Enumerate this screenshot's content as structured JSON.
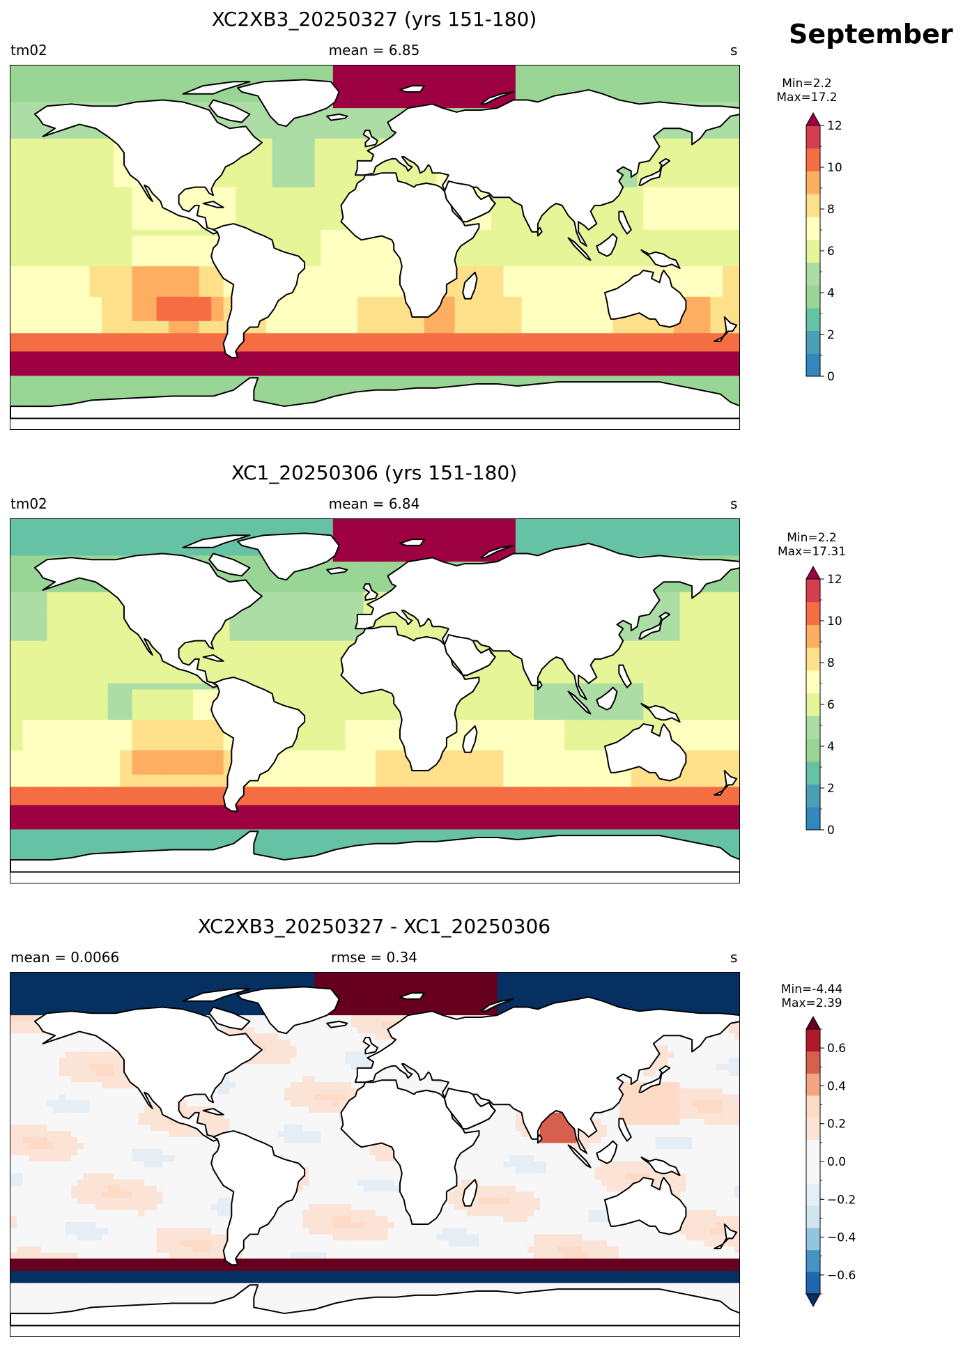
{
  "page_title": "September",
  "chart_data": [
    {
      "type": "heatmap",
      "title": "XC2XB3_20250327 (yrs 151-180)",
      "left_label": "tm02",
      "center_label": "mean = 6.85",
      "right_label": "s",
      "colorbar": {
        "note": "Min=2.2\nMax=17.2",
        "min": 0,
        "max": 12,
        "extend": "max",
        "ticks": [
          "0",
          "2",
          "4",
          "6",
          "8",
          "10",
          "12"
        ],
        "colors": [
          "#5e4fa2",
          "#3288bd",
          "#4a9fb4",
          "#66c2a5",
          "#99d594",
          "#abdda4",
          "#e6f598",
          "#ffffbf",
          "#fee08b",
          "#fdae61",
          "#f46d43",
          "#d53e4f",
          "#9e0142"
        ]
      },
      "mean": 6.85,
      "data_min": 2.2,
      "data_max": 17.2
    },
    {
      "type": "heatmap",
      "title": "XC1_20250306 (yrs 151-180)",
      "left_label": "tm02",
      "center_label": "mean = 6.84",
      "right_label": "s",
      "colorbar": {
        "note": "Min=2.2\nMax=17.31",
        "min": 0,
        "max": 12,
        "extend": "max",
        "ticks": [
          "0",
          "2",
          "4",
          "6",
          "8",
          "10",
          "12"
        ],
        "colors": [
          "#5e4fa2",
          "#3288bd",
          "#4a9fb4",
          "#66c2a5",
          "#99d594",
          "#abdda4",
          "#e6f598",
          "#ffffbf",
          "#fee08b",
          "#fdae61",
          "#f46d43",
          "#d53e4f",
          "#9e0142"
        ]
      },
      "mean": 6.84,
      "data_min": 2.2,
      "data_max": 17.31
    },
    {
      "type": "heatmap",
      "title": "XC2XB3_20250327 - XC1_20250306",
      "left_label": "mean = 0.0066",
      "center_label": "rmse = 0.34",
      "right_label": "s",
      "colorbar": {
        "note": "Min=-4.44\nMax=2.39",
        "min": -0.7,
        "max": 0.7,
        "extend": "both",
        "ticks": [
          "−0.6",
          "−0.4",
          "−0.2",
          "0.0",
          "0.2",
          "0.4",
          "0.6"
        ],
        "colors": [
          "#053061",
          "#2166ac",
          "#4393c3",
          "#92c5de",
          "#d1e5f0",
          "#e4eef4",
          "#f7f7f7",
          "#f7f7f7",
          "#fbe3d6",
          "#fddbc7",
          "#f4a582",
          "#d6604d",
          "#b2182b",
          "#67001f"
        ]
      },
      "mean": 0.0066,
      "rmse": 0.34,
      "data_min": -4.44,
      "data_max": 2.39
    }
  ]
}
